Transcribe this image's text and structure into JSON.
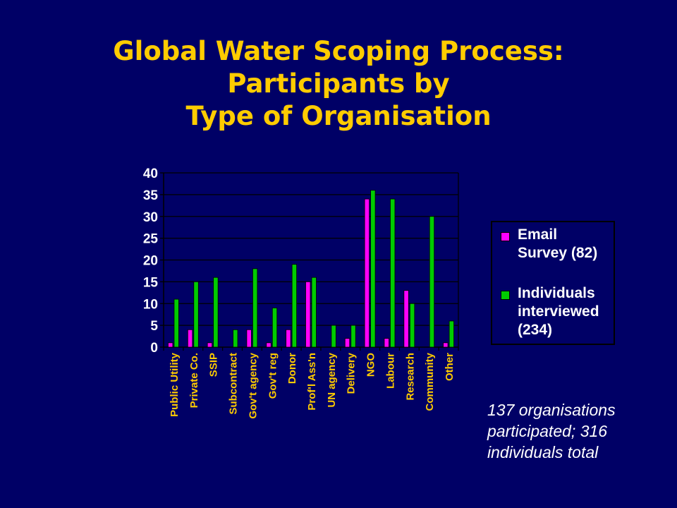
{
  "title": {
    "line1": "Global Water Scoping Process:",
    "line2": "Participants by",
    "line3": "Type of Organisation"
  },
  "note": "137 organisations participated; 316 individuals total",
  "colors": {
    "background": "#000066",
    "title": "#ffcc00",
    "series_email": "#ff00ff",
    "series_interviewed": "#00cc00"
  },
  "chart_data": {
    "type": "bar",
    "categories": [
      "Public Utility",
      "Private Co.",
      "SSIP",
      "Subcontract",
      "Gov't agency",
      "Gov't reg",
      "Donor",
      "Prof'l Ass'n",
      "UN agency",
      "Delivery",
      "NGO",
      "Labour",
      "Research",
      "Community",
      "Other"
    ],
    "series": [
      {
        "name": "Email Survey (82)",
        "color": "#ff00ff",
        "values": [
          1,
          4,
          1,
          0,
          4,
          1,
          4,
          15,
          0,
          2,
          34,
          2,
          13,
          0,
          1
        ]
      },
      {
        "name": "Individuals interviewed (234)",
        "color": "#00cc00",
        "values": [
          11,
          15,
          16,
          4,
          18,
          9,
          19,
          16,
          5,
          5,
          36,
          34,
          10,
          30,
          6
        ]
      }
    ],
    "yticks": [
      "0",
      "5",
      "10",
      "15",
      "20",
      "25",
      "30",
      "35",
      "40"
    ],
    "ylim": [
      0,
      40
    ],
    "grid": true,
    "legend_position": "right"
  }
}
